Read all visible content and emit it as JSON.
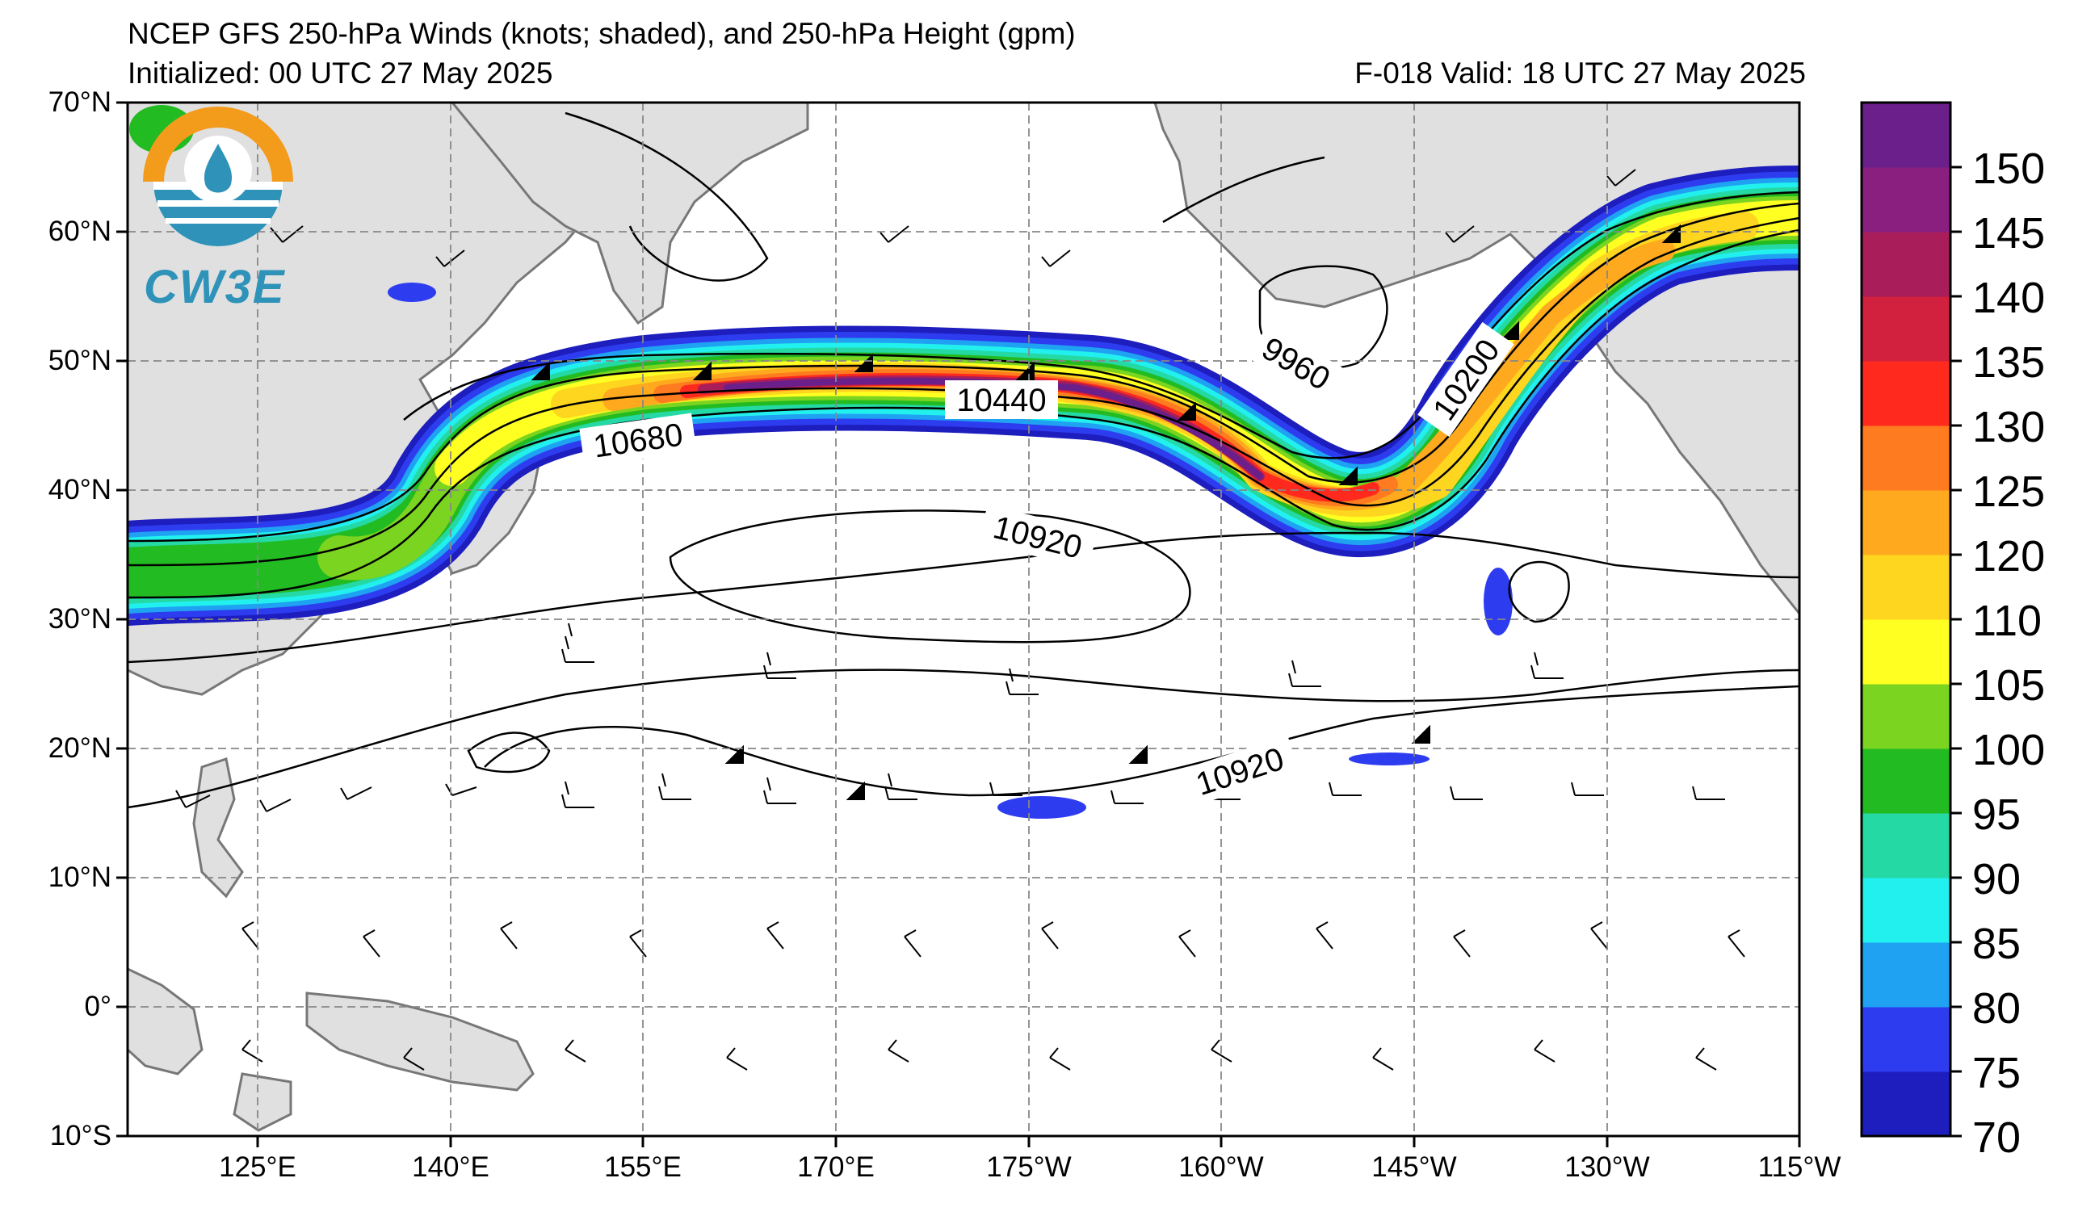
{
  "header": {
    "title": "NCEP GFS 250-hPa Winds (knots; shaded), and 250-hPa Height (gpm)",
    "initialized": "Initialized: 00 UTC 27 May 2025",
    "valid": "F-018  Valid: 18 UTC 27 May 2025"
  },
  "logo": {
    "text": "CW3E",
    "icon": "cw3e-logo-icon"
  },
  "map": {
    "projection": "cylindrical",
    "lon_range": [
      116,
      245
    ],
    "lat_range": [
      -10,
      70
    ],
    "latitude_labels": [
      "70°N",
      "60°N",
      "50°N",
      "40°N",
      "30°N",
      "20°N",
      "10°N",
      "0°",
      "10°S"
    ],
    "longitude_labels": [
      "125°E",
      "140°E",
      "155°E",
      "170°E",
      "175°W",
      "160°W",
      "145°W",
      "130°W",
      "115°W"
    ],
    "contour_labels": [
      "10440",
      "10680",
      "9960",
      "10200",
      "10920",
      "10920"
    ],
    "land_color": "#e0e0e0",
    "coastline_color": "#777777",
    "grid": true
  },
  "colorbar": {
    "labels": [
      "150",
      "145",
      "140",
      "135",
      "130",
      "125",
      "120",
      "110",
      "105",
      "100",
      "95",
      "90",
      "85",
      "80",
      "75",
      "70"
    ],
    "colors": [
      "#1e1ebe",
      "#2e3cf0",
      "#1fa2f2",
      "#22f0ee",
      "#24d9a4",
      "#22bb22",
      "#7bd41f",
      "#ffff22",
      "#ffd61f",
      "#ffaa1e",
      "#ff7b1f",
      "#ff2a1d",
      "#d2213e",
      "#a81d5a",
      "#8a1f80",
      "#6a1f8a"
    ]
  }
}
